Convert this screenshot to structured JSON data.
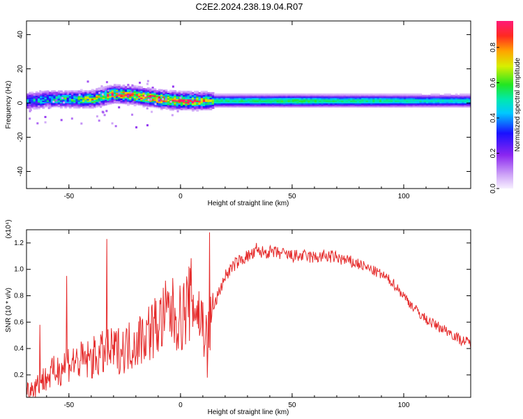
{
  "title": "C2E2.2024.238.19.04.R07",
  "chart_data": [
    {
      "type": "heatmap",
      "xlabel": "Height of straight line (km)",
      "ylabel": "Frequency (Hz)",
      "xlim": [
        -69,
        130
      ],
      "ylim": [
        -50,
        48
      ],
      "xticks": [
        -50,
        0,
        50,
        100
      ],
      "yticks": [
        -40,
        -20,
        0,
        20,
        40
      ],
      "colorbar": {
        "label": "Normalized spectral amplitude",
        "range": [
          0,
          0.95
        ],
        "ticks": [
          0.0,
          0.2,
          0.4,
          0.6,
          0.8
        ],
        "tick_labels": [
          "0.0",
          "0.2",
          "0.4",
          "0.6",
          "0.8"
        ]
      },
      "ridge": {
        "x": [
          -69,
          -60,
          -50,
          -40,
          -30,
          -20,
          -10,
          0,
          10,
          15,
          30,
          50,
          70,
          90,
          110,
          130
        ],
        "frequency": [
          1,
          2,
          2,
          2,
          5,
          4,
          2,
          1,
          1,
          1,
          1,
          1,
          1,
          1,
          1,
          1
        ],
        "peak_amplitude": [
          0.45,
          0.5,
          0.55,
          0.7,
          0.85,
          0.85,
          0.9,
          0.9,
          0.8,
          0.55,
          0.55,
          0.6,
          0.55,
          0.55,
          0.5,
          0.5
        ]
      }
    },
    {
      "type": "line",
      "xlabel": "Height of straight line (km)",
      "ylabel": "SNR (10 * v/v)",
      "y_exponent_label": "(x10⁴)",
      "xlim": [
        -69,
        130
      ],
      "ylim": [
        0.03,
        1.3
      ],
      "xticks": [
        -50,
        0,
        50,
        100
      ],
      "yticks": [
        0.2,
        0.4,
        0.6,
        0.8,
        1.0,
        1.2
      ],
      "ytick_labels": [
        "0.2",
        "0.4",
        "0.6",
        "0.8",
        "1.0",
        "1.2"
      ],
      "series": [
        {
          "color": "#e52b2b",
          "x": [
            -69,
            -65,
            -60,
            -55,
            -50,
            -45,
            -40,
            -35,
            -30,
            -25,
            -20,
            -15,
            -10,
            -5,
            0,
            5,
            10,
            12,
            15,
            20,
            25,
            30,
            35,
            40,
            45,
            50,
            55,
            60,
            65,
            70,
            75,
            80,
            85,
            90,
            95,
            100,
            105,
            110,
            115,
            120,
            125,
            130
          ],
          "y": [
            0.08,
            0.12,
            0.18,
            0.24,
            0.3,
            0.3,
            0.32,
            0.36,
            0.38,
            0.4,
            0.45,
            0.52,
            0.58,
            0.68,
            0.62,
            0.78,
            0.6,
            0.45,
            0.72,
            0.95,
            1.05,
            1.1,
            1.13,
            1.13,
            1.12,
            1.1,
            1.1,
            1.09,
            1.1,
            1.09,
            1.06,
            1.04,
            1.0,
            0.96,
            0.9,
            0.8,
            0.7,
            0.62,
            0.57,
            0.53,
            0.47,
            0.44
          ]
        }
      ],
      "spikes": [
        {
          "x": -63,
          "y": 0.58
        },
        {
          "x": -51,
          "y": 0.95
        },
        {
          "x": -33,
          "y": 1.23
        },
        {
          "x": 12,
          "y": 0.18
        },
        {
          "x": 13,
          "y": 1.28
        },
        {
          "x": 34,
          "y": 1.2
        }
      ]
    }
  ]
}
